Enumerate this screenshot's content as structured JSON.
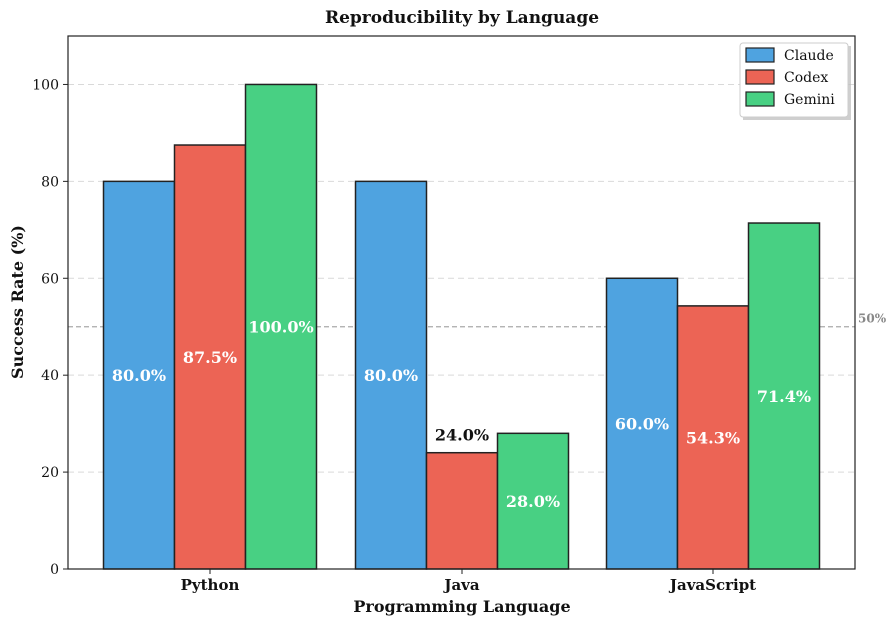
{
  "chart_data": {
    "type": "bar",
    "title": "Reproducibility by Language",
    "xlabel": "Programming Language",
    "ylabel": "Success Rate (%)",
    "ylim": [
      0,
      110
    ],
    "yticks": [
      0,
      20,
      40,
      60,
      80,
      100
    ],
    "grid": true,
    "legend_position": "top-right",
    "categories": [
      "Python",
      "Java",
      "JavaScript"
    ],
    "series": [
      {
        "name": "Claude",
        "color": "#4fa3e0",
        "values": [
          80.0,
          80.0,
          60.0
        ],
        "labels": [
          "80.0%",
          "80.0%",
          "60.0%"
        ]
      },
      {
        "name": "Codex",
        "color": "#ec6455",
        "values": [
          87.5,
          24.0,
          54.3
        ],
        "labels": [
          "87.5%",
          "24.0%",
          "54.3%"
        ]
      },
      {
        "name": "Gemini",
        "color": "#48d083",
        "values": [
          100.0,
          28.0,
          71.4
        ],
        "labels": [
          "100.0%",
          "28.0%",
          "71.4%"
        ]
      }
    ],
    "reference_line": {
      "value": 50,
      "label": "50%"
    }
  }
}
